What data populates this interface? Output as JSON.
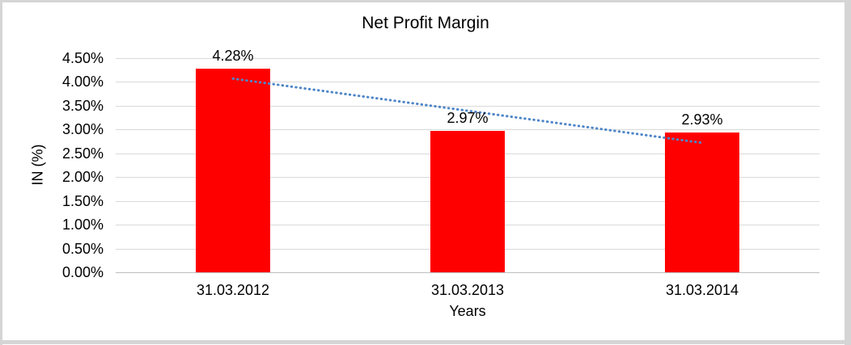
{
  "frame": {
    "background": "#ffffff",
    "border_color": "#d5d5d5"
  },
  "chart_data": {
    "type": "bar",
    "title": "Net Profit Margin",
    "xlabel": "Years",
    "ylabel": "IN (%)",
    "categories": [
      "31.03.2012",
      "31.03.2013",
      "31.03.2014"
    ],
    "values": [
      4.28,
      2.97,
      2.93
    ],
    "data_labels": [
      "4.28%",
      "2.97%",
      "2.93%"
    ],
    "series_color": "#ff0000",
    "ylim": [
      0,
      4.5
    ],
    "yticks": [
      {
        "label": "4.50%",
        "value": 4.5
      },
      {
        "label": "4.00%",
        "value": 4.0
      },
      {
        "label": "3.50%",
        "value": 3.5
      },
      {
        "label": "3.00%",
        "value": 3.0
      },
      {
        "label": "2.50%",
        "value": 2.5
      },
      {
        "label": "2.00%",
        "value": 2.0
      },
      {
        "label": "1.50%",
        "value": 1.5
      },
      {
        "label": "1.00%",
        "value": 1.0
      },
      {
        "label": "0.50%",
        "value": 0.5
      },
      {
        "label": "0.00%",
        "value": 0.0
      }
    ],
    "grid": true,
    "gridline_color": "#d9d9d9",
    "axis_line_color": "#bfbfbf",
    "legend": "none",
    "trendline": {
      "type": "linear",
      "line_style": "dotted",
      "color": "#4e86c8",
      "start_value": 4.07,
      "end_value": 2.72
    }
  }
}
